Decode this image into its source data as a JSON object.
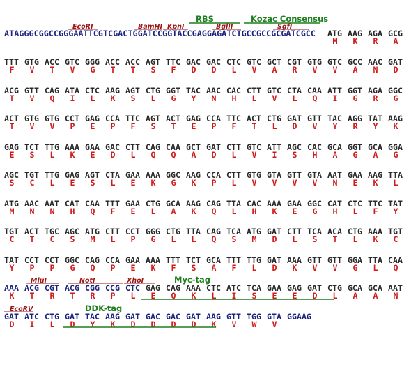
{
  "header": {
    "utr_sequence": "ATAGGGCGGCCGGGAATTCGTCGACTGGATCCGGTACCGAGGAGATCTGCCGCCGCGATCGCC",
    "restriction_sites": [
      "EcoRI",
      "BamHI",
      "KpnI",
      "BglII",
      "SgfI"
    ],
    "features": [
      "RBS",
      "Kozac Consensus"
    ]
  },
  "rows": [
    {
      "codons": [
        "ATG",
        "AAG",
        "AGA",
        "GCG"
      ],
      "aa": [
        "M",
        "K",
        "R",
        "A"
      ]
    },
    {
      "codons": [
        "TTT",
        "GTG",
        "ACC",
        "GTC",
        "GGG",
        "ACC",
        "ACC",
        "AGT",
        "TTC",
        "GAC",
        "GAC",
        "CTC",
        "GTC",
        "GCT",
        "CGT",
        "GTG",
        "GTC",
        "GCC",
        "AAC",
        "GAT"
      ],
      "aa": [
        "F",
        "V",
        "T",
        "V",
        "G",
        "T",
        "T",
        "S",
        "F",
        "D",
        "D",
        "L",
        "V",
        "A",
        "R",
        "V",
        "V",
        "A",
        "N",
        "D"
      ]
    },
    {
      "codons": [
        "ACG",
        "GTT",
        "CAG",
        "ATA",
        "CTC",
        "AAG",
        "AGT",
        "CTG",
        "GGT",
        "TAC",
        "AAC",
        "CAC",
        "CTT",
        "GTC",
        "CTA",
        "CAA",
        "ATT",
        "GGT",
        "AGA",
        "GGC"
      ],
      "aa": [
        "T",
        "V",
        "Q",
        "I",
        "L",
        "K",
        "S",
        "L",
        "G",
        "Y",
        "N",
        "H",
        "L",
        "V",
        "L",
        "Q",
        "I",
        "G",
        "R",
        "G"
      ]
    },
    {
      "codons": [
        "ACT",
        "GTG",
        "GTG",
        "CCT",
        "GAG",
        "CCA",
        "TTC",
        "AGT",
        "ACT",
        "GAG",
        "CCA",
        "TTC",
        "ACT",
        "CTG",
        "GAT",
        "GTT",
        "TAC",
        "AGG",
        "TAT",
        "AAG"
      ],
      "aa": [
        "T",
        "V",
        "V",
        "P",
        "E",
        "P",
        "F",
        "S",
        "T",
        "E",
        "P",
        "F",
        "T",
        "L",
        "D",
        "V",
        "Y",
        "R",
        "Y",
        "K"
      ]
    },
    {
      "codons": [
        "GAG",
        "TCT",
        "TTG",
        "AAA",
        "GAA",
        "GAC",
        "CTT",
        "CAG",
        "CAA",
        "GCT",
        "GAT",
        "CTT",
        "GTC",
        "ATT",
        "AGC",
        "CAC",
        "GCA",
        "GGT",
        "GCA",
        "GGA"
      ],
      "aa": [
        "E",
        "S",
        "L",
        "K",
        "E",
        "D",
        "L",
        "Q",
        "Q",
        "A",
        "D",
        "L",
        "V",
        "I",
        "S",
        "H",
        "A",
        "G",
        "A",
        "G"
      ]
    },
    {
      "codons": [
        "AGC",
        "TGT",
        "TTG",
        "GAG",
        "AGT",
        "CTA",
        "GAA",
        "AAA",
        "GGC",
        "AAG",
        "CCA",
        "CTT",
        "GTG",
        "GTA",
        "GTT",
        "GTA",
        "AAT",
        "GAA",
        "AAG",
        "TTA"
      ],
      "aa": [
        "S",
        "C",
        "L",
        "E",
        "S",
        "L",
        "E",
        "K",
        "G",
        "K",
        "P",
        "L",
        "V",
        "V",
        "V",
        "V",
        "N",
        "E",
        "K",
        "L"
      ]
    },
    {
      "codons": [
        "ATG",
        "AAC",
        "AAT",
        "CAT",
        "CAA",
        "TTT",
        "GAA",
        "CTG",
        "GCA",
        "AAG",
        "CAG",
        "TTA",
        "CAC",
        "AAA",
        "GAA",
        "GGC",
        "CAT",
        "CTC",
        "TTC",
        "TAT"
      ],
      "aa": [
        "M",
        "N",
        "N",
        "H",
        "Q",
        "F",
        "E",
        "L",
        "A",
        "K",
        "Q",
        "L",
        "H",
        "K",
        "E",
        "G",
        "H",
        "L",
        "F",
        "Y"
      ]
    },
    {
      "codons": [
        "TGT",
        "ACT",
        "TGC",
        "AGC",
        "ATG",
        "CTT",
        "CCT",
        "GGG",
        "CTG",
        "TTA",
        "CAG",
        "TCA",
        "ATG",
        "GAT",
        "CTT",
        "TCA",
        "ACA",
        "CTG",
        "AAA",
        "TGT"
      ],
      "aa": [
        "C",
        "T",
        "C",
        "S",
        "M",
        "L",
        "P",
        "G",
        "L",
        "L",
        "Q",
        "S",
        "M",
        "D",
        "L",
        "S",
        "T",
        "L",
        "K",
        "C"
      ]
    },
    {
      "codons": [
        "TAT",
        "CCT",
        "CCT",
        "GGC",
        "CAG",
        "CCA",
        "GAA",
        "AAA",
        "TTT",
        "TCT",
        "GCA",
        "TTT",
        "TTG",
        "GAT",
        "AAA",
        "GTT",
        "GTT",
        "GGA",
        "TTA",
        "CAA"
      ],
      "aa": [
        "Y",
        "P",
        "P",
        "G",
        "Q",
        "P",
        "E",
        "K",
        "F",
        "S",
        "A",
        "F",
        "L",
        "D",
        "K",
        "V",
        "V",
        "G",
        "L",
        "Q"
      ]
    },
    {
      "codons": [
        "AAA",
        "ACG",
        "CGT",
        "ACG",
        "CGG",
        "CCG",
        "CTC",
        "GAG",
        "CAG",
        "AAA",
        "CTC",
        "ATC",
        "TCA",
        "GAA",
        "GAG",
        "GAT",
        "CTG",
        "GCA",
        "GCA",
        "AAT"
      ],
      "aa": [
        "K",
        "T",
        "R",
        "T",
        "R",
        "P",
        "L",
        "E",
        "Q",
        "K",
        "L",
        "I",
        "S",
        "E",
        "E",
        "D",
        "L",
        "A",
        "A",
        "N"
      ]
    },
    {
      "codons": [
        "GAT",
        "ATC",
        "CTG",
        "GAT",
        "TAC",
        "AAG",
        "GAT",
        "GAC",
        "GAC",
        "GAT",
        "AAG",
        "GTT",
        "TGG",
        "GTA",
        "GGAAG"
      ],
      "aa": [
        "D",
        "I",
        "L",
        "D",
        "Y",
        "K",
        "D",
        "D",
        "D",
        "D",
        "K",
        "V",
        "W",
        "V",
        ""
      ]
    }
  ],
  "row10_labels": {
    "sites": [
      "MluI",
      "NotI",
      "XhoI"
    ],
    "feature": "Myc-tag"
  },
  "row11_labels": {
    "sites": [
      "EcoRV"
    ],
    "feature": "DDK-tag"
  },
  "colors": {
    "dna": "#2a2a2a",
    "vector_dna": "#1a237e",
    "amino_acid": "#d01a1a",
    "site_label": "#9b1515",
    "feature": "#1f7f1f"
  }
}
